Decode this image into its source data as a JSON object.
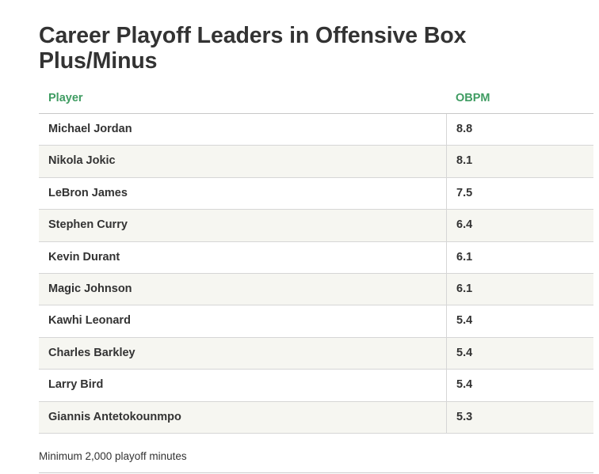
{
  "title": "Career Playoff Leaders in Offensive Box Plus/Minus",
  "note": "Minimum 2,000 playoff minutes",
  "colors": {
    "header_text": "#3f9c62",
    "body_text": "#333333",
    "alt_row": "#f6f6f1"
  },
  "chart_data": {
    "type": "table",
    "title": "Career Playoff Leaders in Offensive Box Plus/Minus",
    "columns": [
      "Player",
      "OBPM"
    ],
    "rows": [
      [
        "Michael Jordan",
        "8.8"
      ],
      [
        "Nikola Jokic",
        "8.1"
      ],
      [
        "LeBron James",
        "7.5"
      ],
      [
        "Stephen Curry",
        "6.4"
      ],
      [
        "Kevin Durant",
        "6.1"
      ],
      [
        "Magic Johnson",
        "6.1"
      ],
      [
        "Kawhi Leonard",
        "5.4"
      ],
      [
        "Charles Barkley",
        "5.4"
      ],
      [
        "Larry Bird",
        "5.4"
      ],
      [
        "Giannis Antetokounmpo",
        "5.3"
      ]
    ],
    "footnote": "Minimum 2,000 playoff minutes"
  }
}
